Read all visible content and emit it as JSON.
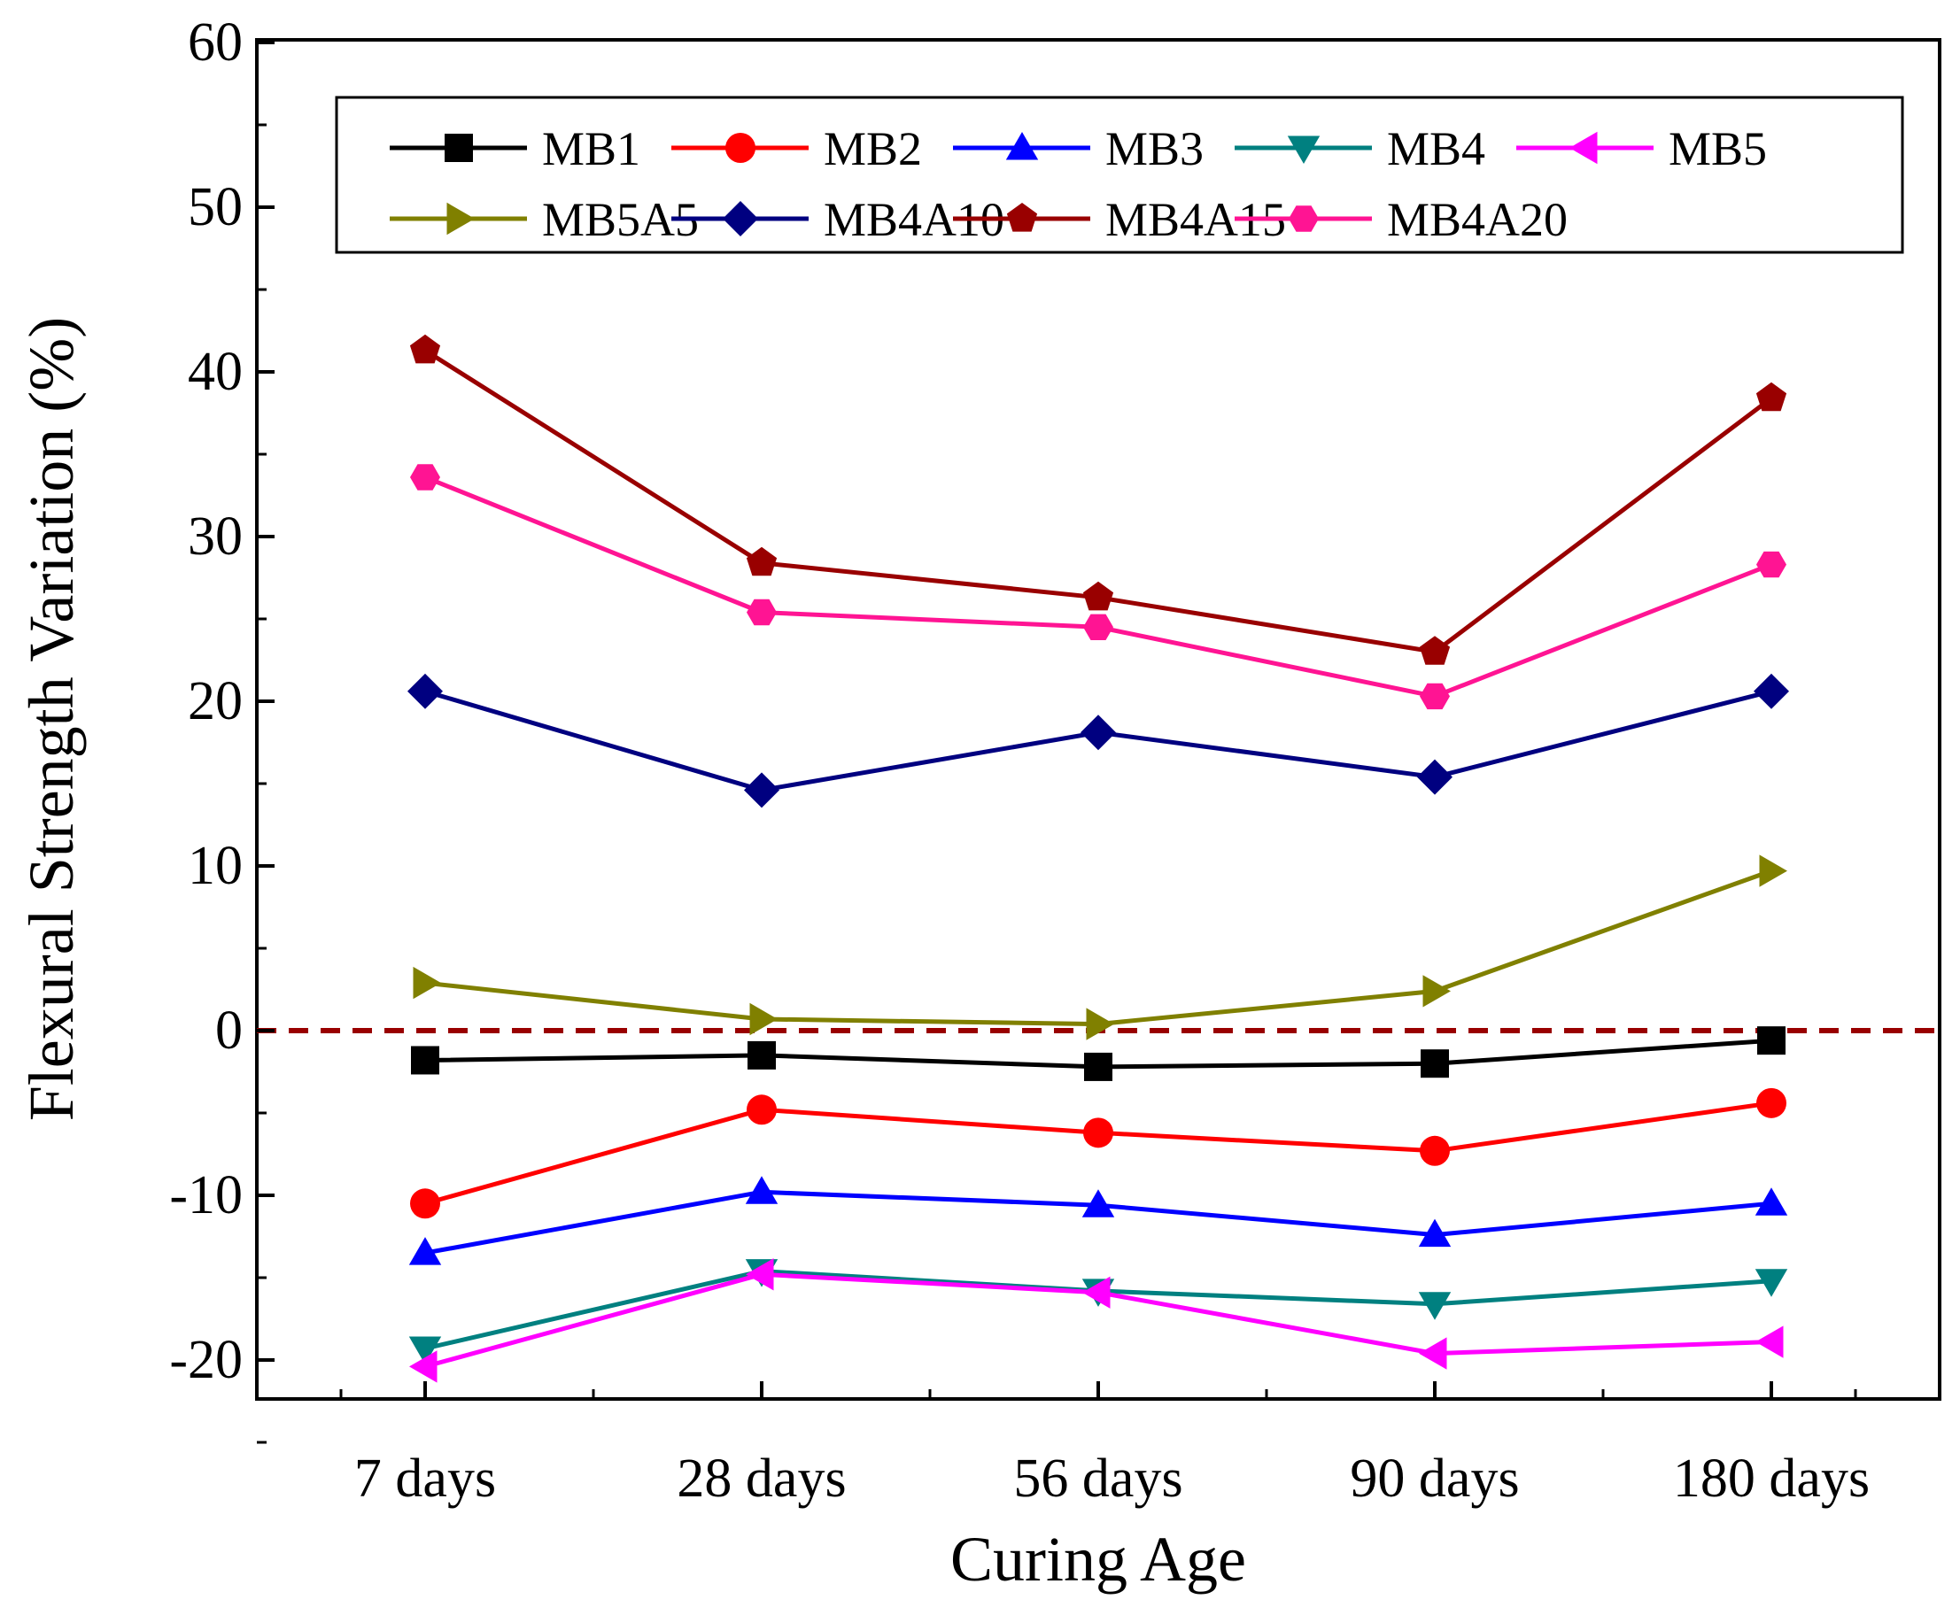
{
  "chart_data": {
    "type": "line",
    "title": "",
    "xlabel": "Curing Age",
    "ylabel": "Flexural Strength Variation (%)",
    "categories": [
      "7 days",
      "28 days",
      "56 days",
      "90 days",
      "180 days"
    ],
    "ylim": [
      -25,
      60
    ],
    "yticks": [
      -20,
      -10,
      0,
      10,
      20,
      30,
      40,
      50,
      60
    ],
    "reference_line": {
      "y": 0,
      "style": "dashed",
      "color": "#990000"
    },
    "legend": {
      "placement": "top",
      "columns": 5
    },
    "series": [
      {
        "name": "MB1",
        "color": "#000000",
        "marker": "square",
        "values": [
          -1.8,
          -1.5,
          -2.2,
          -2.0,
          -0.6
        ]
      },
      {
        "name": "MB2",
        "color": "#ff0000",
        "marker": "circle",
        "values": [
          -10.5,
          -4.8,
          -6.2,
          -7.3,
          -4.4
        ]
      },
      {
        "name": "MB3",
        "color": "#0000ff",
        "marker": "triangle-up",
        "values": [
          -13.5,
          -9.8,
          -10.6,
          -12.4,
          -10.5
        ]
      },
      {
        "name": "MB4",
        "color": "#008080",
        "marker": "triangle-down",
        "values": [
          -19.3,
          -14.6,
          -15.8,
          -16.6,
          -15.2
        ]
      },
      {
        "name": "MB5",
        "color": "#ff00ff",
        "marker": "triangle-left",
        "values": [
          -20.4,
          -14.8,
          -15.9,
          -19.6,
          -18.9
        ]
      },
      {
        "name": "MB5A5",
        "color": "#808000",
        "marker": "triangle-right",
        "values": [
          2.9,
          0.7,
          0.4,
          2.4,
          9.7
        ]
      },
      {
        "name": "MB4A10",
        "color": "#000080",
        "marker": "diamond",
        "values": [
          20.6,
          14.6,
          18.1,
          15.4,
          20.6
        ]
      },
      {
        "name": "MB4A15",
        "color": "#990000",
        "marker": "pentagon",
        "values": [
          41.3,
          28.4,
          26.3,
          23.0,
          38.4
        ]
      },
      {
        "name": "MB4A20",
        "color": "#ff1493",
        "marker": "hexagon",
        "values": [
          33.6,
          25.4,
          24.5,
          20.3,
          28.3
        ]
      }
    ]
  }
}
